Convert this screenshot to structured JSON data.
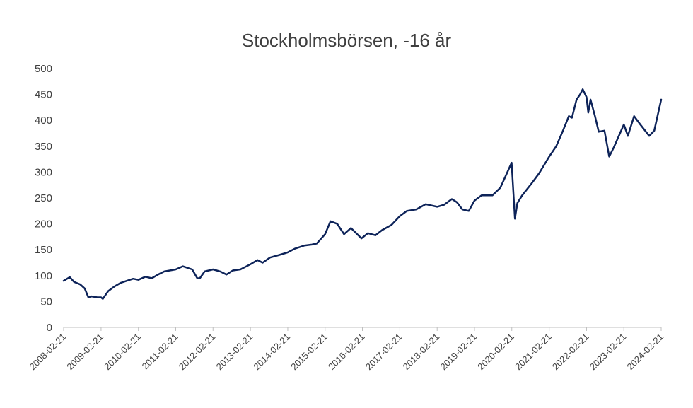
{
  "chart_data": {
    "type": "line",
    "title": "Stockholmsbörsen, -16 år",
    "xlabel": "",
    "ylabel": "",
    "ylim": [
      0,
      500
    ],
    "yticks": [
      0,
      50,
      100,
      150,
      200,
      250,
      300,
      350,
      400,
      450,
      500
    ],
    "xticks": [
      "2008-02-21",
      "2009-02-21",
      "2010-02-21",
      "2011-02-21",
      "2012-02-21",
      "2013-02-21",
      "2014-02-21",
      "2015-02-21",
      "2016-02-21",
      "2017-02-21",
      "2018-02-21",
      "2019-02-21",
      "2020-02-21",
      "2021-02-21",
      "2022-02-21",
      "2023-02-21",
      "2024-02-21"
    ],
    "grid": false,
    "legend": "none",
    "line_color": "#0d2359",
    "series": [
      {
        "x": [
          "2008-02-21",
          "2008-04-21",
          "2008-06-01",
          "2008-08-01",
          "2008-09-15",
          "2008-10-20",
          "2008-11-20",
          "2009-01-15",
          "2009-02-21",
          "2009-03-10",
          "2009-05-01",
          "2009-07-01",
          "2009-09-01",
          "2009-11-01",
          "2010-01-01",
          "2010-02-21",
          "2010-05-01",
          "2010-07-01",
          "2010-09-01",
          "2010-11-01",
          "2011-02-21",
          "2011-05-01",
          "2011-08-01",
          "2011-09-20",
          "2011-10-15",
          "2011-12-01",
          "2012-02-21",
          "2012-05-01",
          "2012-07-01",
          "2012-09-01",
          "2012-11-15",
          "2013-02-21",
          "2013-05-01",
          "2013-06-20",
          "2013-09-01",
          "2013-12-01",
          "2014-02-21",
          "2014-05-01",
          "2014-08-01",
          "2014-10-15",
          "2014-12-01",
          "2015-02-21",
          "2015-04-15",
          "2015-06-20",
          "2015-08-25",
          "2015-11-01",
          "2016-02-11",
          "2016-04-15",
          "2016-06-27",
          "2016-09-01",
          "2016-12-01",
          "2017-02-21",
          "2017-05-01",
          "2017-08-01",
          "2017-11-01",
          "2018-02-21",
          "2018-05-01",
          "2018-07-15",
          "2018-09-01",
          "2018-10-25",
          "2018-12-27",
          "2019-02-21",
          "2019-05-01",
          "2019-08-15",
          "2019-11-01",
          "2020-02-19",
          "2020-03-23",
          "2020-04-15",
          "2020-06-01",
          "2020-09-01",
          "2020-11-15",
          "2021-02-21",
          "2021-05-01",
          "2021-07-01",
          "2021-09-01",
          "2021-10-01",
          "2021-11-15",
          "2021-12-20",
          "2022-01-15",
          "2022-02-21",
          "2022-03-10",
          "2022-04-01",
          "2022-05-15",
          "2022-06-20",
          "2022-08-15",
          "2022-10-01",
          "2022-11-15",
          "2023-02-21",
          "2023-04-01",
          "2023-06-01",
          "2023-08-01",
          "2023-10-27",
          "2023-12-15",
          "2024-02-21"
        ],
        "y": [
          90,
          97,
          88,
          83,
          75,
          58,
          60,
          58,
          58,
          55,
          70,
          79,
          86,
          90,
          94,
          92,
          98,
          95,
          102,
          108,
          112,
          118,
          112,
          95,
          95,
          108,
          112,
          108,
          102,
          110,
          112,
          122,
          130,
          125,
          135,
          140,
          145,
          152,
          158,
          160,
          162,
          180,
          205,
          200,
          180,
          192,
          172,
          182,
          178,
          188,
          198,
          215,
          225,
          228,
          238,
          233,
          237,
          248,
          242,
          228,
          225,
          245,
          255,
          255,
          270,
          318,
          210,
          240,
          255,
          278,
          298,
          330,
          350,
          378,
          408,
          405,
          440,
          450,
          460,
          445,
          415,
          440,
          408,
          378,
          380,
          330,
          348,
          392,
          370,
          408,
          392,
          370,
          380,
          440
        ]
      }
    ]
  }
}
